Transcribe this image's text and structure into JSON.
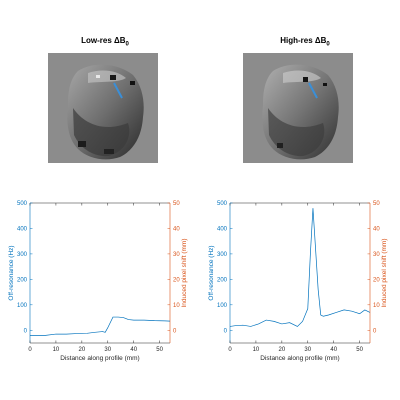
{
  "panels": [
    {
      "title_main": "Low-res ΔB",
      "title_sub": "0",
      "chart_data": {
        "type": "line",
        "x": [
          0,
          3,
          6,
          10,
          14,
          18,
          22,
          25,
          28,
          29,
          30,
          32,
          34,
          36,
          38,
          40,
          44,
          48,
          52,
          54
        ],
        "y": [
          -20,
          -20,
          -20,
          -15,
          -15,
          -13,
          -12,
          -8,
          -5,
          -8,
          10,
          52,
          52,
          50,
          42,
          40,
          40,
          38,
          37,
          36
        ],
        "xlabel": "Distance along profile (mm)",
        "ylabel_left": "Off-resonance (Hz)",
        "ylabel_right": "Induced pixel shift (mm)",
        "xlim": [
          0,
          54
        ],
        "ylim_left": [
          -50,
          500
        ],
        "ylim_right": [
          -5,
          50
        ],
        "xticks": [
          0,
          10,
          20,
          30,
          40,
          50
        ],
        "yticks_left": [
          0,
          100,
          200,
          300,
          400,
          500
        ],
        "yticks_right": [
          0,
          10,
          20,
          30,
          40,
          50
        ],
        "grid": false,
        "line_color": "#0072bd",
        "left_axis_color": "#0072bd",
        "right_axis_color": "#d95319"
      }
    },
    {
      "title_main": "High-res ΔB",
      "title_sub": "0",
      "chart_data": {
        "type": "line",
        "x": [
          0,
          2,
          5,
          8,
          11,
          14,
          17,
          20,
          23,
          26,
          28,
          30,
          31,
          32,
          33,
          34,
          35,
          36,
          38,
          41,
          44,
          47,
          50,
          52,
          54
        ],
        "y": [
          15,
          18,
          20,
          15,
          25,
          40,
          35,
          25,
          30,
          15,
          35,
          85,
          300,
          480,
          320,
          160,
          60,
          55,
          60,
          70,
          80,
          75,
          65,
          80,
          70
        ],
        "xlabel": "Distance along profile (mm)",
        "ylabel_left": "Off-resonance (Hz)",
        "ylabel_right": "Induced pixel shift (mm)",
        "xlim": [
          0,
          54
        ],
        "ylim_left": [
          -50,
          500
        ],
        "ylim_right": [
          -5,
          50
        ],
        "xticks": [
          0,
          10,
          20,
          30,
          40,
          50
        ],
        "yticks_left": [
          0,
          100,
          200,
          300,
          400,
          500
        ],
        "yticks_right": [
          0,
          10,
          20,
          30,
          40,
          50
        ],
        "grid": false,
        "line_color": "#0072bd",
        "left_axis_color": "#0072bd",
        "right_axis_color": "#d95319"
      }
    }
  ]
}
